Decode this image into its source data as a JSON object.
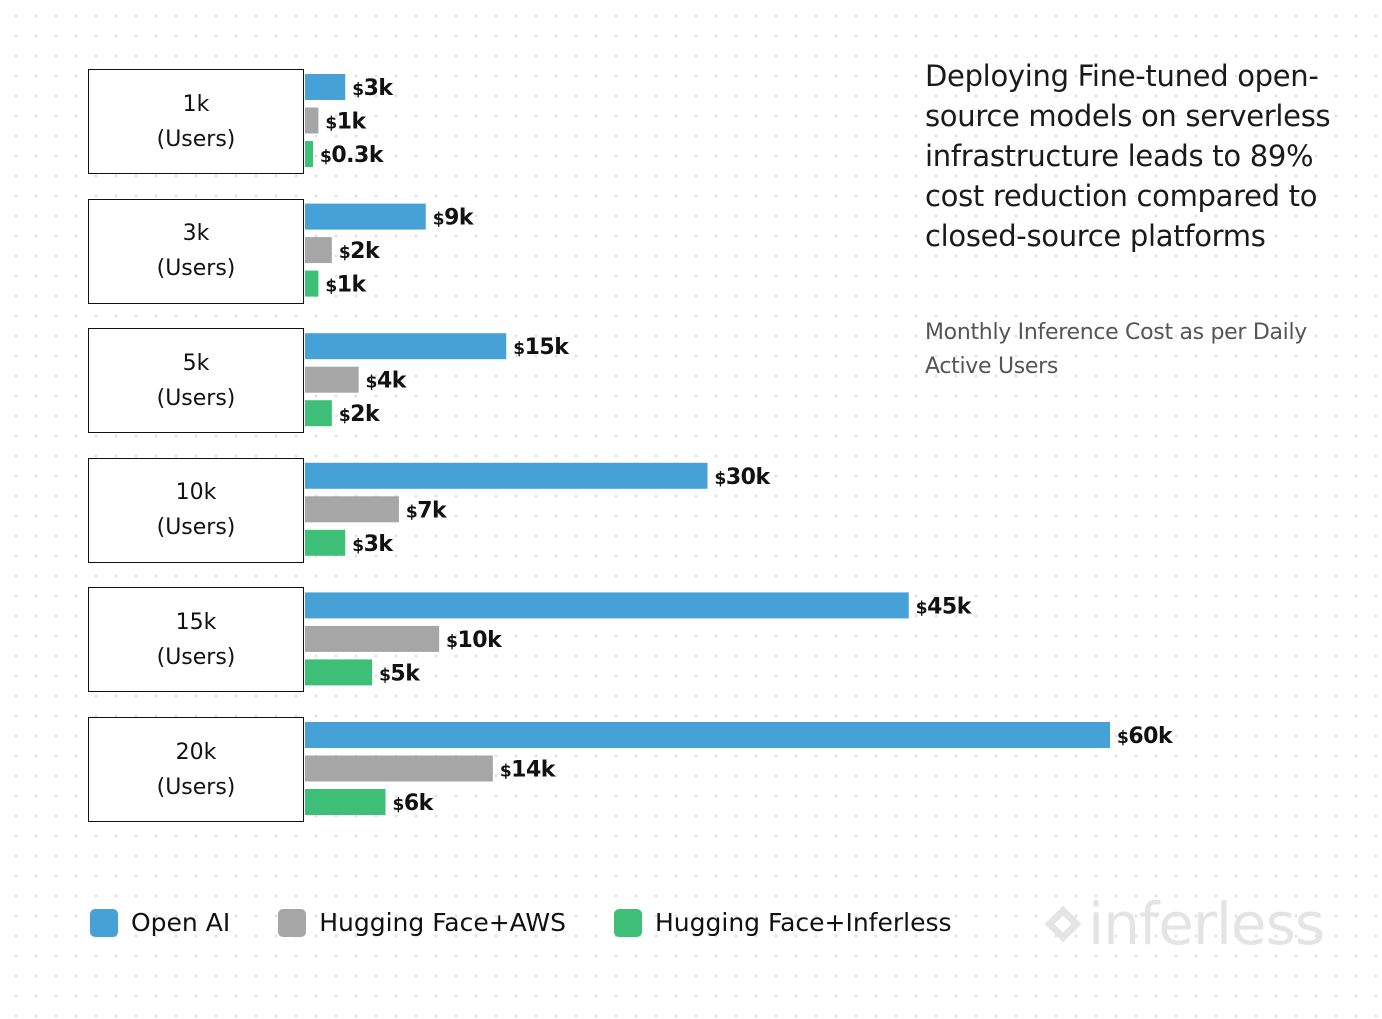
{
  "chart_data": {
    "type": "bar",
    "orientation": "horizontal",
    "title": "Deploying Fine-tuned open-source models on serverless infrastructure leads to 89% cost reduction compared to closed-source platforms",
    "subtitle": "Monthly Inference Cost as per Daily Active Users",
    "categories": [
      {
        "value": "1k",
        "unit": "(Users)"
      },
      {
        "value": "3k",
        "unit": "(Users)"
      },
      {
        "value": "5k",
        "unit": "(Users)"
      },
      {
        "value": "10k",
        "unit": "(Users)"
      },
      {
        "value": "15k",
        "unit": "(Users)"
      },
      {
        "value": "20k",
        "unit": "(Users)"
      }
    ],
    "series": [
      {
        "name": "Open AI",
        "color": "#46a1d6",
        "values": [
          3,
          9,
          15,
          30,
          45,
          60
        ],
        "labels": [
          "$3k",
          "$9k",
          "$15k",
          "$30k",
          "$45k",
          "$60k"
        ]
      },
      {
        "name": "Hugging Face+AWS",
        "color": "#a6a6a6",
        "values": [
          1,
          2,
          4,
          7,
          10,
          14
        ],
        "labels": [
          "$1k",
          "$2k",
          "$4k",
          "$7k",
          "$10k",
          "$14k"
        ]
      },
      {
        "name": "Hugging Face+Inferless",
        "color": "#3dbf78",
        "values": [
          0.3,
          1,
          2,
          3,
          5,
          6
        ],
        "labels": [
          "$0.3k",
          "$1k",
          "$2k",
          "$3k",
          "$5k",
          "$6k"
        ]
      }
    ],
    "xlim": [
      0,
      60
    ],
    "grid": false,
    "legend": "bottom-left"
  },
  "logo": {
    "icon": "diamond-icon",
    "text": "inferless"
  }
}
